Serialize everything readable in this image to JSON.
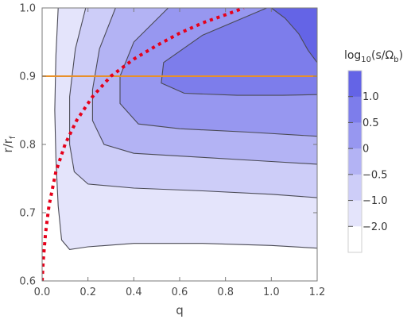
{
  "chart_data": {
    "type": "contour",
    "xlabel": "q",
    "ylabel": "r/r",
    "ylabel_sub": "f",
    "xlim": [
      0,
      1.2
    ],
    "ylim": [
      0.6,
      1.0
    ],
    "x_ticks": [
      "0.0",
      "0.2",
      "0.4",
      "0.6",
      "0.8",
      "1.0",
      "1.2"
    ],
    "y_ticks": [
      "0.6",
      "0.7",
      "0.8",
      "0.9",
      "1.0"
    ],
    "legend": {
      "title": "log10(s/Ωb)",
      "title_parts": [
        "log",
        "10",
        "(s/Ω",
        "b",
        ")"
      ],
      "levels": [
        "1.0",
        "0.5",
        "0",
        "−0.5",
        "−1.0",
        "−2.0"
      ],
      "placement": "right"
    },
    "contour_levels": [
      -2.0,
      -1.0,
      -0.5,
      0,
      0.5,
      1.0
    ],
    "contour_lines": [
      {
        "level": -2.0,
        "points": [
          [
            0.07,
            1.0
          ],
          [
            0.06,
            0.93
          ],
          [
            0.055,
            0.85
          ],
          [
            0.06,
            0.78
          ],
          [
            0.07,
            0.71
          ],
          [
            0.085,
            0.66
          ],
          [
            0.12,
            0.646
          ],
          [
            0.2,
            0.65
          ],
          [
            0.4,
            0.655
          ],
          [
            0.7,
            0.655
          ],
          [
            1.0,
            0.652
          ],
          [
            1.2,
            0.648
          ]
        ]
      },
      {
        "level": -1.0,
        "points": [
          [
            0.19,
            1.0
          ],
          [
            0.145,
            0.94
          ],
          [
            0.12,
            0.87
          ],
          [
            0.12,
            0.8
          ],
          [
            0.14,
            0.76
          ],
          [
            0.2,
            0.742
          ],
          [
            0.4,
            0.736
          ],
          [
            0.7,
            0.732
          ],
          [
            1.0,
            0.727
          ],
          [
            1.2,
            0.722
          ]
        ]
      },
      {
        "level": -0.5,
        "points": [
          [
            0.32,
            1.0
          ],
          [
            0.25,
            0.94
          ],
          [
            0.22,
            0.88
          ],
          [
            0.22,
            0.835
          ],
          [
            0.27,
            0.8
          ],
          [
            0.4,
            0.787
          ],
          [
            0.7,
            0.781
          ],
          [
            1.0,
            0.775
          ],
          [
            1.2,
            0.771
          ]
        ]
      },
      {
        "level": 0,
        "points": [
          [
            0.55,
            1.0
          ],
          [
            0.4,
            0.95
          ],
          [
            0.34,
            0.9
          ],
          [
            0.34,
            0.86
          ],
          [
            0.42,
            0.83
          ],
          [
            0.6,
            0.823
          ],
          [
            0.9,
            0.818
          ],
          [
            1.2,
            0.812
          ]
        ]
      },
      {
        "level": 0.5,
        "points": [
          [
            0.98,
            1.0
          ],
          [
            0.7,
            0.96
          ],
          [
            0.53,
            0.92
          ],
          [
            0.52,
            0.89
          ],
          [
            0.62,
            0.875
          ],
          [
            0.85,
            0.872
          ],
          [
            1.05,
            0.872
          ],
          [
            1.2,
            0.873
          ]
        ]
      },
      {
        "level": 1.0,
        "points": [
          [
            1.0,
            1.0
          ],
          [
            1.06,
            0.985
          ],
          [
            1.12,
            0.962
          ],
          [
            1.16,
            0.938
          ],
          [
            1.2,
            0.92
          ]
        ]
      }
    ],
    "horizontal_line": {
      "y": 0.9,
      "color": "#e8902a"
    },
    "dotted_curve": {
      "color": "#e6001a",
      "points": [
        [
          0.0,
          0.6
        ],
        [
          0.005,
          0.63
        ],
        [
          0.015,
          0.67
        ],
        [
          0.03,
          0.71
        ],
        [
          0.06,
          0.76
        ],
        [
          0.1,
          0.8
        ],
        [
          0.15,
          0.835
        ],
        [
          0.22,
          0.87
        ],
        [
          0.3,
          0.9
        ],
        [
          0.4,
          0.925
        ],
        [
          0.5,
          0.945
        ],
        [
          0.6,
          0.963
        ],
        [
          0.7,
          0.978
        ],
        [
          0.8,
          0.99
        ],
        [
          0.88,
          1.0
        ]
      ]
    },
    "colors": {
      "fill_scale": [
        "#ffffff",
        "#e4e4fb",
        "#cdcdf8",
        "#b3b3f4",
        "#9797f0",
        "#7d7deb",
        "#6464e6"
      ],
      "contour_stroke": "#4a4a55",
      "frame": "#7a7a7a"
    }
  }
}
